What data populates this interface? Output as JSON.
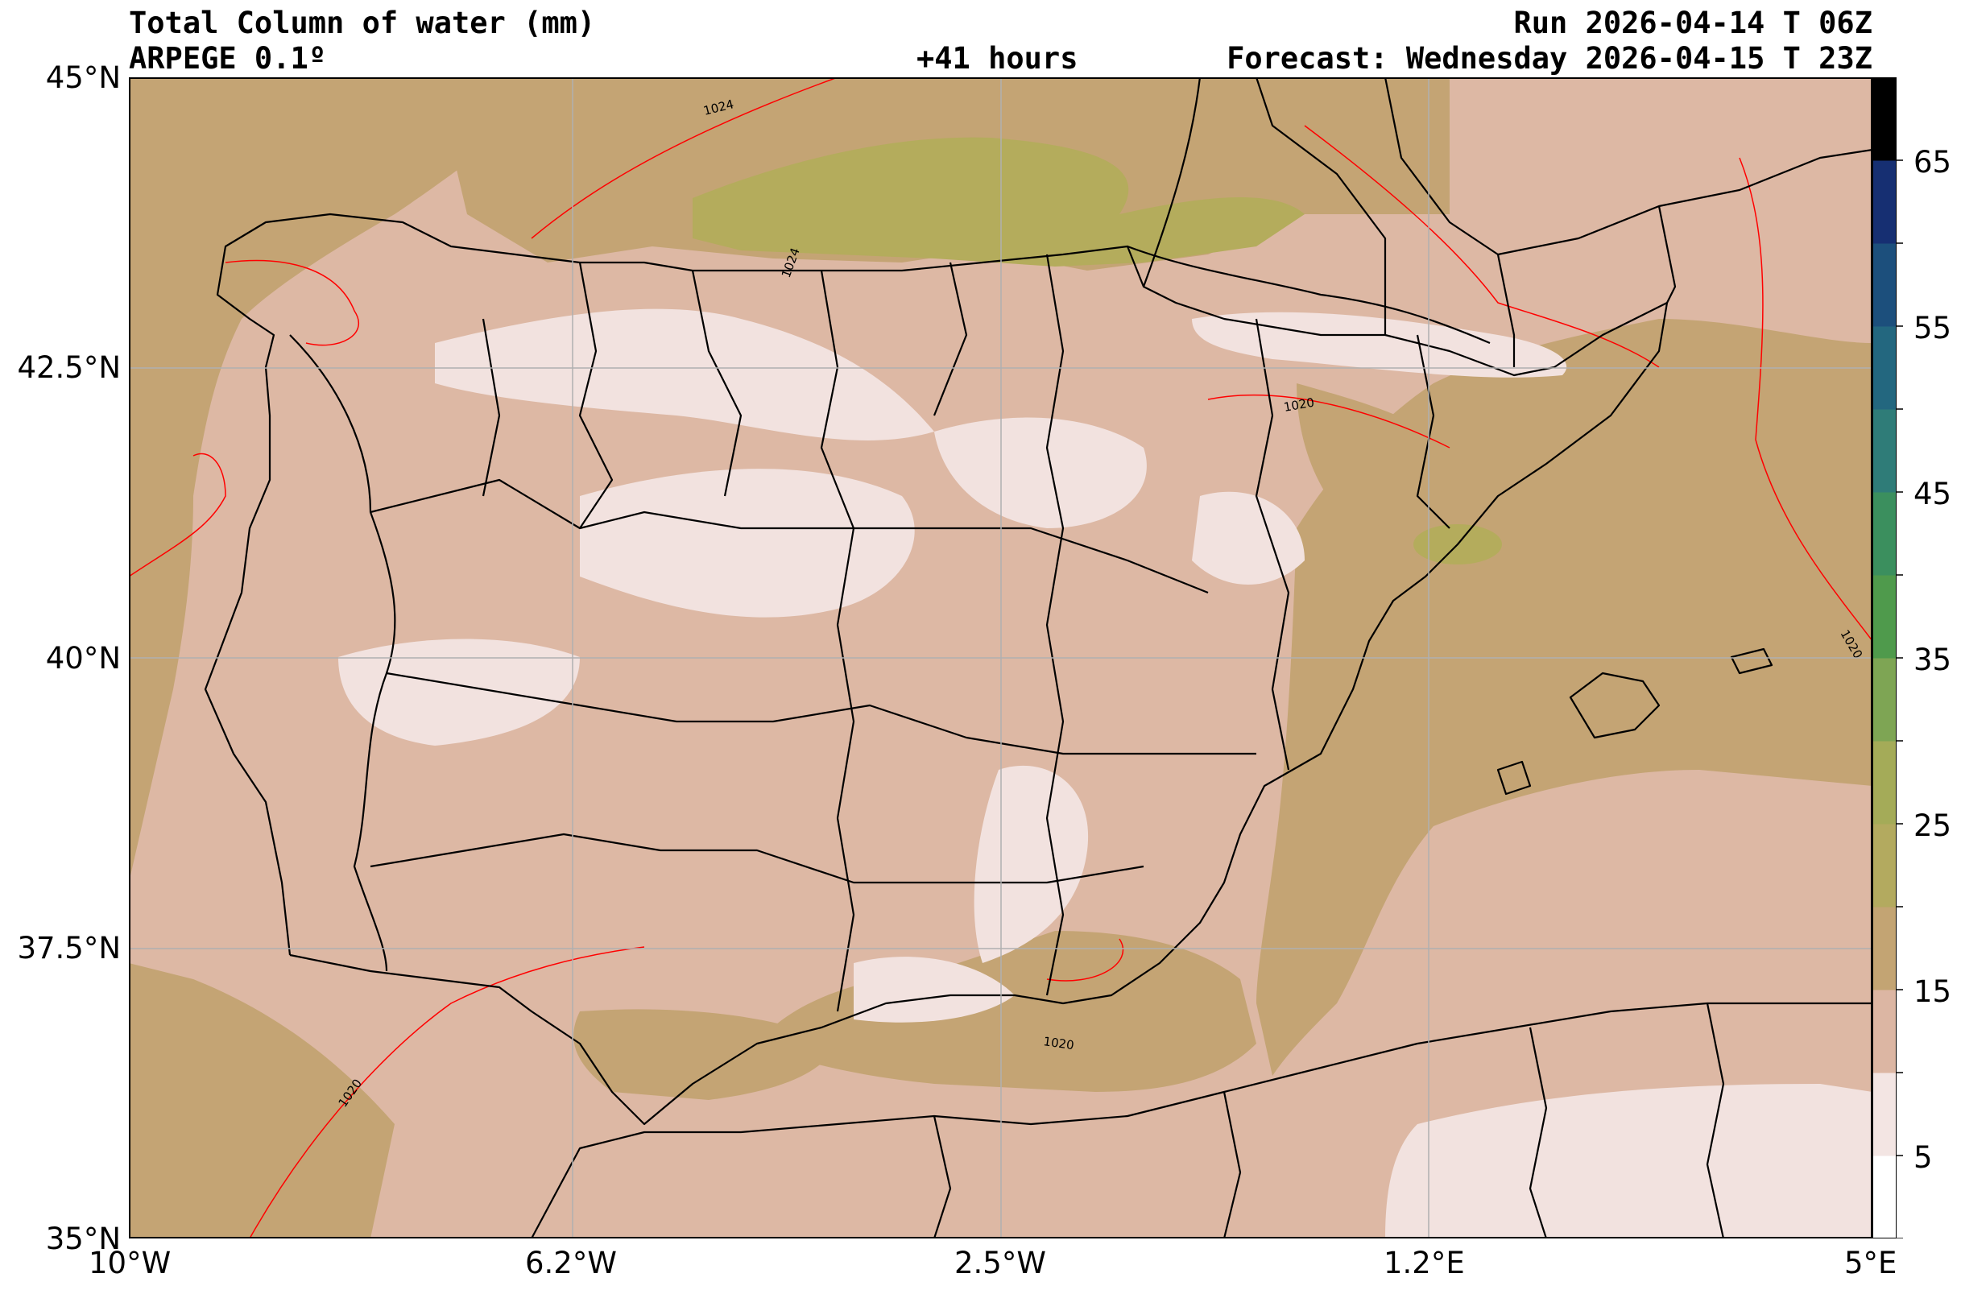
{
  "header": {
    "title": "Total Column of water (mm)",
    "model": "ARPEGE 0.1º",
    "lead_time": "+41 hours",
    "run": "Run 2026-04-14 T 06Z",
    "forecast": "Forecast: Wednesday 2026-04-15 T 23Z"
  },
  "map": {
    "region": "Iberian Peninsula",
    "lon_range": [
      -10,
      5
    ],
    "lat_range": [
      35,
      45
    ],
    "lon_ticks": [
      "10°W",
      "6.2°W",
      "2.5°W",
      "1.2°E",
      "5°E"
    ],
    "lat_ticks": [
      "45°N",
      "42.5°N",
      "40°N",
      "37.5°N",
      "35°N"
    ],
    "gridlines": true,
    "isobar_labels": [
      "1024",
      "1024",
      "1020",
      "1020",
      "1020",
      "1020"
    ],
    "colors": {
      "tcw_5_10": "#f2e2df",
      "tcw_10_15": "#ddb8a4",
      "tcw_15_20": "#c4a474",
      "tcw_20_25": "#b4ac5c",
      "isobar": "#ff0000",
      "borders": "#000000",
      "grid": "#b0b0b0"
    }
  },
  "colorbar": {
    "tick_labels": [
      "65",
      "55",
      "45",
      "35",
      "25",
      "15",
      "5"
    ],
    "colors": [
      "#ffffff",
      "#f3e5e3",
      "#dcb6a3",
      "#c3a473",
      "#b3aa5f",
      "#a4ab58",
      "#7ea554",
      "#4f9a4c",
      "#3b8f5e",
      "#2f7c78",
      "#23677f",
      "#1c4f7c",
      "#162f72",
      "#000000"
    ]
  }
}
